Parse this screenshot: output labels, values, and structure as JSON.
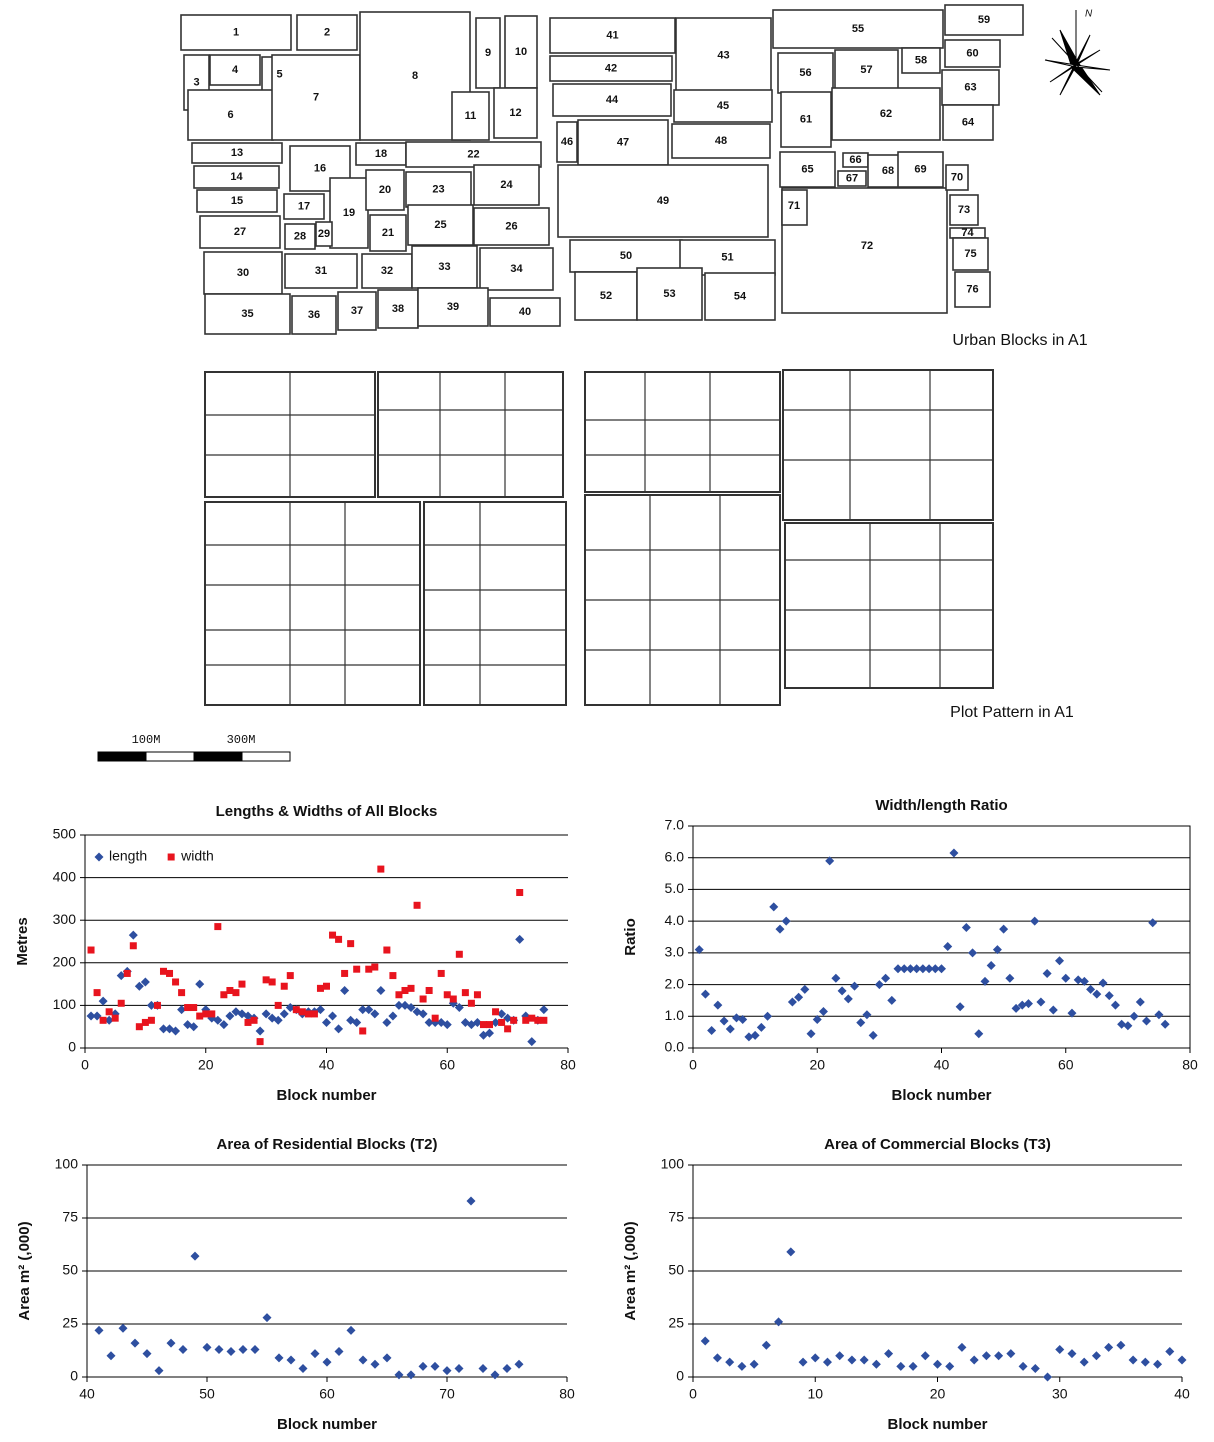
{
  "map": {
    "blocks": [
      "1",
      "2",
      "3",
      "4",
      "5",
      "6",
      "7",
      "8",
      "9",
      "10",
      "11",
      "12",
      "13",
      "14",
      "15",
      "16",
      "17",
      "18",
      "19",
      "20",
      "21",
      "22",
      "23",
      "24",
      "25",
      "26",
      "27",
      "28",
      "29",
      "30",
      "31",
      "32",
      "33",
      "34",
      "35",
      "36",
      "37",
      "38",
      "39",
      "40",
      "41",
      "42",
      "43",
      "44",
      "45",
      "46",
      "47",
      "48",
      "49",
      "50",
      "51",
      "52",
      "53",
      "54",
      "55",
      "56",
      "57",
      "58",
      "59",
      "60",
      "61",
      "62",
      "63",
      "64",
      "65",
      "66",
      "67",
      "68",
      "69",
      "70",
      "71",
      "72",
      "73",
      "74",
      "75",
      "76"
    ],
    "north": "N",
    "captions": [
      "Urban Blocks in A1",
      "Plot Pattern in A1"
    ],
    "scale_labels": [
      "100M",
      "300M"
    ]
  },
  "chart_data": [
    {
      "type": "scatter",
      "title": "Lengths & Widths of All Blocks",
      "x_label": "Block number",
      "y_label": "Metres",
      "x": [
        1,
        2,
        3,
        4,
        5,
        6,
        7,
        8,
        9,
        10,
        11,
        12,
        13,
        14,
        15,
        16,
        17,
        18,
        19,
        20,
        21,
        22,
        23,
        24,
        25,
        26,
        27,
        28,
        29,
        30,
        31,
        32,
        33,
        34,
        35,
        36,
        37,
        38,
        39,
        40,
        41,
        42,
        43,
        44,
        45,
        46,
        47,
        48,
        49,
        50,
        51,
        52,
        53,
        54,
        55,
        56,
        57,
        58,
        59,
        60,
        61,
        62,
        63,
        64,
        65,
        66,
        67,
        68,
        69,
        70,
        71,
        72,
        73,
        74,
        75,
        76
      ],
      "series": [
        {
          "name": "length",
          "color": "#2e4fa0",
          "marker": "diamond",
          "values": [
            75,
            75,
            110,
            65,
            80,
            170,
            180,
            265,
            145,
            155,
            100,
            100,
            45,
            45,
            40,
            90,
            55,
            50,
            150,
            90,
            70,
            65,
            55,
            75,
            85,
            80,
            75,
            70,
            40,
            80,
            70,
            65,
            80,
            95,
            90,
            80,
            85,
            85,
            90,
            60,
            75,
            45,
            135,
            65,
            60,
            90,
            90,
            80,
            135,
            60,
            75,
            100,
            100,
            95,
            85,
            80,
            60,
            60,
            60,
            55,
            105,
            95,
            60,
            55,
            60,
            30,
            35,
            60,
            80,
            70,
            65,
            255,
            75,
            15,
            65,
            90
          ]
        },
        {
          "name": "width",
          "color": "#e8141e",
          "marker": "square",
          "values": [
            230,
            130,
            65,
            85,
            70,
            105,
            175,
            240,
            50,
            60,
            65,
            100,
            180,
            175,
            155,
            130,
            95,
            95,
            75,
            80,
            80,
            285,
            125,
            135,
            130,
            150,
            60,
            65,
            15,
            160,
            155,
            100,
            145,
            170,
            90,
            85,
            80,
            80,
            140,
            145,
            265,
            255,
            175,
            245,
            185,
            40,
            185,
            190,
            420,
            230,
            170,
            125,
            135,
            140,
            335,
            115,
            135,
            70,
            175,
            125,
            115,
            220,
            130,
            105,
            125,
            55,
            55,
            85,
            60,
            45,
            65,
            365,
            65,
            70,
            65,
            65
          ]
        }
      ],
      "xlim": [
        0,
        80
      ],
      "xticks": [
        0,
        20,
        40,
        60,
        80
      ],
      "ylim": [
        0,
        500
      ],
      "yticks": [
        0,
        100,
        200,
        300,
        400,
        500
      ],
      "grid": true,
      "legend": "upper left"
    },
    {
      "type": "scatter",
      "title": "Width/length Ratio",
      "x_label": "Block number",
      "y_label": "Ratio",
      "x": [
        1,
        2,
        3,
        4,
        5,
        6,
        7,
        8,
        9,
        10,
        11,
        12,
        13,
        14,
        15,
        16,
        17,
        18,
        19,
        20,
        21,
        22,
        23,
        24,
        25,
        26,
        27,
        28,
        29,
        30,
        31,
        32,
        33,
        34,
        35,
        36,
        37,
        38,
        39,
        40,
        41,
        42,
        43,
        44,
        45,
        46,
        47,
        48,
        49,
        50,
        51,
        52,
        53,
        54,
        55,
        56,
        57,
        58,
        59,
        60,
        61,
        62,
        63,
        64,
        65,
        66,
        67,
        68,
        69,
        70,
        71,
        72,
        73,
        74,
        75,
        76
      ],
      "color": "#2e4fa0",
      "marker": "diamond",
      "values": [
        3.1,
        1.7,
        0.55,
        1.35,
        0.85,
        0.6,
        0.95,
        0.9,
        0.35,
        0.4,
        0.65,
        1.0,
        4.45,
        3.75,
        4.0,
        1.45,
        1.6,
        1.85,
        0.45,
        0.9,
        1.15,
        5.9,
        2.2,
        1.8,
        1.55,
        1.95,
        0.8,
        1.05,
        0.4,
        2.0,
        2.2,
        1.5,
        2.5,
        2.5,
        2.5,
        2.5,
        2.5,
        2.5,
        2.5,
        2.5,
        3.2,
        6.15,
        1.3,
        3.8,
        3.0,
        0.45,
        2.1,
        2.6,
        3.1,
        3.75,
        2.2,
        1.25,
        1.35,
        1.4,
        4.0,
        1.45,
        2.35,
        1.2,
        2.75,
        2.2,
        1.1,
        2.15,
        2.1,
        1.85,
        1.7,
        2.05,
        1.65,
        1.35,
        0.75,
        0.7,
        1.0,
        1.45,
        0.85,
        3.95,
        1.05,
        0.75
      ],
      "xlim": [
        0,
        80
      ],
      "xticks": [
        0,
        20,
        40,
        60,
        80
      ],
      "ylim": [
        0,
        7
      ],
      "yticks": [
        {
          "value": 0,
          "label": "0.0"
        },
        {
          "value": 1,
          "label": "1.0"
        },
        {
          "value": 2,
          "label": "2.0"
        },
        {
          "value": 3,
          "label": "3.0"
        },
        {
          "value": 4,
          "label": "4.0"
        },
        {
          "value": 5,
          "label": "5.0"
        },
        {
          "value": 6,
          "label": "6.0"
        },
        {
          "value": 7,
          "label": "7.0"
        }
      ],
      "grid": true,
      "frame": true
    },
    {
      "type": "scatter",
      "title": "Area of Residential Blocks (T2)",
      "x_label": "Block number",
      "y_label": "Area m² (,000)",
      "x": [
        41,
        42,
        43,
        44,
        45,
        46,
        47,
        48,
        49,
        50,
        51,
        52,
        53,
        54,
        55,
        56,
        57,
        58,
        59,
        60,
        61,
        62,
        63,
        64,
        65,
        66,
        67,
        68,
        69,
        70,
        71,
        72,
        73,
        74,
        75,
        76
      ],
      "color": "#2e4fa0",
      "marker": "diamond",
      "values": [
        22,
        10,
        23,
        16,
        11,
        3,
        16,
        13,
        57,
        14,
        13,
        12,
        13,
        13,
        28,
        9,
        8,
        4,
        11,
        7,
        12,
        22,
        8,
        6,
        9,
        1,
        1,
        5,
        5,
        3,
        4,
        83,
        4,
        1,
        4,
        6
      ],
      "xlim": [
        40,
        80
      ],
      "xticks": [
        40,
        50,
        60,
        70,
        80
      ],
      "ylim": [
        0,
        100
      ],
      "yticks": [
        0,
        25,
        50,
        75,
        100
      ],
      "grid": true
    },
    {
      "type": "scatter",
      "title": "Area of Commercial Blocks (T3)",
      "x_label": "Block number",
      "y_label": "Area m² (,000)",
      "x": [
        1,
        2,
        3,
        4,
        5,
        6,
        7,
        8,
        9,
        10,
        11,
        12,
        13,
        14,
        15,
        16,
        17,
        18,
        19,
        20,
        21,
        22,
        23,
        24,
        25,
        26,
        27,
        28,
        29,
        30,
        31,
        32,
        33,
        34,
        35,
        36,
        37,
        38,
        39,
        40
      ],
      "color": "#2e4fa0",
      "marker": "diamond",
      "values": [
        17,
        9,
        7,
        5,
        6,
        15,
        26,
        59,
        7,
        9,
        7,
        10,
        8,
        8,
        6,
        11,
        5,
        5,
        10,
        6,
        5,
        14,
        8,
        10,
        10,
        11,
        5,
        4,
        0,
        13,
        11,
        7,
        10,
        14,
        15,
        8,
        7,
        6,
        12,
        8
      ],
      "xlim": [
        0,
        40
      ],
      "xticks": [
        0,
        10,
        20,
        30,
        40
      ],
      "ylim": [
        0,
        100
      ],
      "yticks": [
        0,
        25,
        50,
        75,
        100
      ],
      "grid": true
    }
  ]
}
